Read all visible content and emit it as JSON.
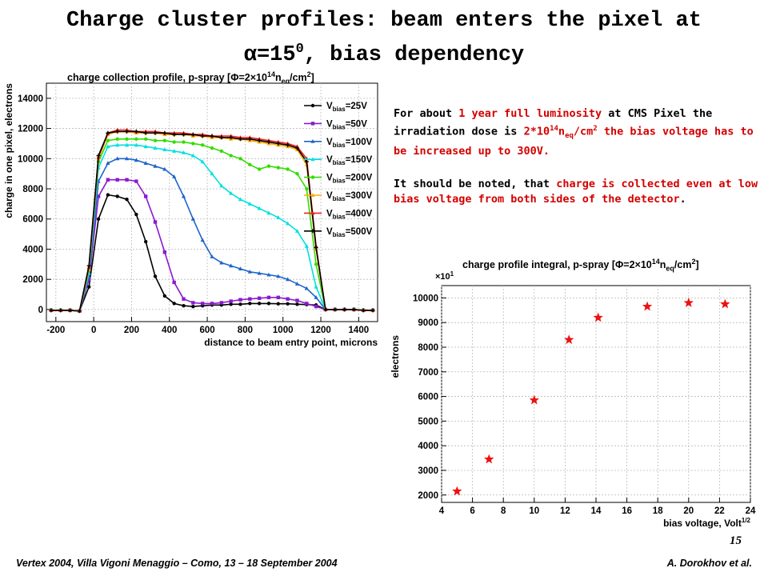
{
  "slide": {
    "title_line1": "Charge cluster profiles: beam enters the pixel at",
    "title_line2_symbol": "α",
    "title_line2_value": "=15",
    "title_line2_sup": "0",
    "title_line2_rest": ", bias dependency",
    "paragraph1": {
      "t1": "For about ",
      "t2": "1 year full luminosity",
      "t3": " at CMS Pixel the irradiation dose is ",
      "t4": "2*10",
      "t4_sup": "14",
      "t5": "n",
      "t5_sub": "eq",
      "t6": "/cm",
      "t6_sup": "2",
      "t7": " the bias voltage has to be increased up to 300V."
    },
    "paragraph2": {
      "t1": "It should be noted, that ",
      "t2": "charge is collected even at low bias voltage from both sides of the detector",
      "t3": "."
    },
    "slide_number": "15",
    "footer_left": "Vertex 2004, Villa Vigoni Menaggio – Como, 13 – 18 September 2004",
    "footer_right": "A. Dorokhov et al.",
    "colors": {
      "text_red": "#d40000"
    }
  },
  "chart_data": [
    {
      "type": "line",
      "title_parts": {
        "pre": "charge collection profile, p-spray [Φ=2×10",
        "sup": "14",
        "mid": "n",
        "sub": "eq",
        "mid2": "/cm",
        "sup2": "2",
        "post": "]"
      },
      "xlabel": "distance to beam entry point, microns",
      "ylabel": "charge in one pixel, electrons",
      "xlim": [
        -250,
        1500
      ],
      "ylim": [
        -800,
        15000
      ],
      "xticks": [
        -200,
        0,
        200,
        400,
        600,
        800,
        1000,
        1200,
        1400
      ],
      "yticks": [
        0,
        2000,
        4000,
        6000,
        8000,
        10000,
        12000,
        14000
      ],
      "grid": true,
      "legend_position": "top-right",
      "x": [
        -225,
        -175,
        -125,
        -75,
        -25,
        25,
        75,
        125,
        175,
        225,
        275,
        325,
        375,
        425,
        475,
        525,
        575,
        625,
        675,
        725,
        775,
        825,
        875,
        925,
        975,
        1025,
        1075,
        1125,
        1175,
        1225,
        1275,
        1325,
        1375,
        1425,
        1475
      ],
      "series": [
        {
          "legend_main": "V",
          "legend_sub": "bias",
          "legend_val": "=25V",
          "color": "#000000",
          "marker": "circle",
          "values": [
            -50,
            -50,
            -50,
            -100,
            1500,
            6000,
            7600,
            7500,
            7300,
            6300,
            4500,
            2200,
            900,
            400,
            250,
            200,
            250,
            300,
            300,
            350,
            350,
            400,
            400,
            400,
            380,
            380,
            350,
            330,
            300,
            0,
            0,
            0,
            0,
            -50,
            -50
          ]
        },
        {
          "legend_main": "V",
          "legend_sub": "bias",
          "legend_val": "=50V",
          "color": "#8a1ad0",
          "marker": "square",
          "values": [
            -50,
            -50,
            -50,
            -100,
            2000,
            7500,
            8600,
            8600,
            8600,
            8500,
            7500,
            5800,
            3800,
            1800,
            700,
            450,
            400,
            400,
            450,
            550,
            650,
            700,
            750,
            800,
            800,
            700,
            600,
            400,
            200,
            0,
            0,
            0,
            0,
            -50,
            -50
          ]
        },
        {
          "legend_main": "V",
          "legend_sub": "bias",
          "legend_val": "=100V",
          "color": "#1f66c8",
          "marker": "triangle",
          "values": [
            -50,
            -50,
            -50,
            -100,
            2200,
            8500,
            9700,
            10000,
            10000,
            9900,
            9700,
            9500,
            9300,
            8800,
            7500,
            6000,
            4600,
            3500,
            3100,
            2900,
            2700,
            2500,
            2400,
            2300,
            2200,
            2000,
            1700,
            1400,
            800,
            0,
            0,
            0,
            0,
            -50,
            -50
          ]
        },
        {
          "legend_main": "V",
          "legend_sub": "bias",
          "legend_val": "=150V",
          "color": "#00e0e0",
          "marker": "triangle",
          "values": [
            -50,
            -50,
            -50,
            -100,
            2400,
            9400,
            10800,
            10900,
            10900,
            10900,
            10800,
            10700,
            10600,
            10500,
            10400,
            10200,
            9800,
            9000,
            8200,
            7700,
            7300,
            7000,
            6700,
            6400,
            6100,
            5700,
            5200,
            4200,
            1500,
            0,
            0,
            0,
            0,
            -50,
            -50
          ]
        },
        {
          "legend_main": "V",
          "legend_sub": "bias",
          "legend_val": "=200V",
          "color": "#33dd00",
          "marker": "circle",
          "values": [
            -50,
            -50,
            -50,
            -100,
            2600,
            9800,
            11200,
            11300,
            11300,
            11300,
            11300,
            11200,
            11200,
            11100,
            11100,
            11000,
            10900,
            10700,
            10500,
            10200,
            10000,
            9600,
            9300,
            9500,
            9400,
            9300,
            9000,
            8000,
            3000,
            0,
            0,
            0,
            0,
            -50,
            -50
          ]
        },
        {
          "legend_main": "V",
          "legend_sub": "bias",
          "legend_val": "=300V",
          "color": "#ffaa00",
          "marker": "triangle",
          "values": [
            -50,
            -50,
            -50,
            -100,
            2700,
            10000,
            11600,
            11800,
            11800,
            11700,
            11700,
            11700,
            11600,
            11600,
            11600,
            11500,
            11500,
            11400,
            11400,
            11300,
            11300,
            11200,
            11100,
            11000,
            10900,
            10800,
            10600,
            9600,
            4000,
            0,
            0,
            0,
            0,
            -50,
            -50
          ]
        },
        {
          "legend_main": "V",
          "legend_sub": "bias",
          "legend_val": "=400V",
          "color": "#ee2222",
          "marker": "triangle",
          "values": [
            -50,
            -50,
            -50,
            -100,
            2800,
            10100,
            11700,
            11900,
            11900,
            11800,
            11800,
            11800,
            11700,
            11700,
            11700,
            11600,
            11600,
            11500,
            11500,
            11500,
            11400,
            11400,
            11300,
            11200,
            11100,
            11000,
            10800,
            10000,
            4200,
            0,
            0,
            0,
            0,
            -50,
            -50
          ]
        },
        {
          "legend_main": "V",
          "legend_sub": "bias",
          "legend_val": "=500V",
          "color": "#000000",
          "marker": "cross",
          "values": [
            -50,
            -50,
            -50,
            -100,
            2900,
            10200,
            11700,
            11800,
            11800,
            11800,
            11700,
            11700,
            11700,
            11600,
            11600,
            11600,
            11500,
            11500,
            11400,
            11400,
            11300,
            11300,
            11200,
            11100,
            11000,
            10900,
            10700,
            9800,
            4100,
            0,
            0,
            0,
            0,
            -50,
            -50
          ]
        }
      ]
    },
    {
      "type": "scatter",
      "title_parts": {
        "pre": "charge profile integral, p-spray [Φ=2×10",
        "sup": "14",
        "mid": "n",
        "sub": "eq",
        "mid2": "/cm",
        "sup2": "2",
        "post": "]"
      },
      "xlabel": "bias voltage, Volt",
      "xlabel_sup": "1/2",
      "ylabel": "electrons",
      "y_multiplier": "×10",
      "y_multiplier_sup": "1",
      "xlim": [
        4,
        24
      ],
      "ylim": [
        1700,
        10500
      ],
      "xticks": [
        4,
        6,
        8,
        10,
        12,
        14,
        16,
        18,
        20,
        22,
        24
      ],
      "yticks": [
        2000,
        3000,
        4000,
        5000,
        6000,
        7000,
        8000,
        9000,
        10000
      ],
      "grid": true,
      "marker_color": "#ee1111",
      "x": [
        5,
        7.07,
        10,
        12.25,
        14.14,
        17.32,
        20,
        22.36
      ],
      "y": [
        2150,
        3450,
        5850,
        8300,
        9200,
        9650,
        9800,
        9750
      ]
    }
  ]
}
